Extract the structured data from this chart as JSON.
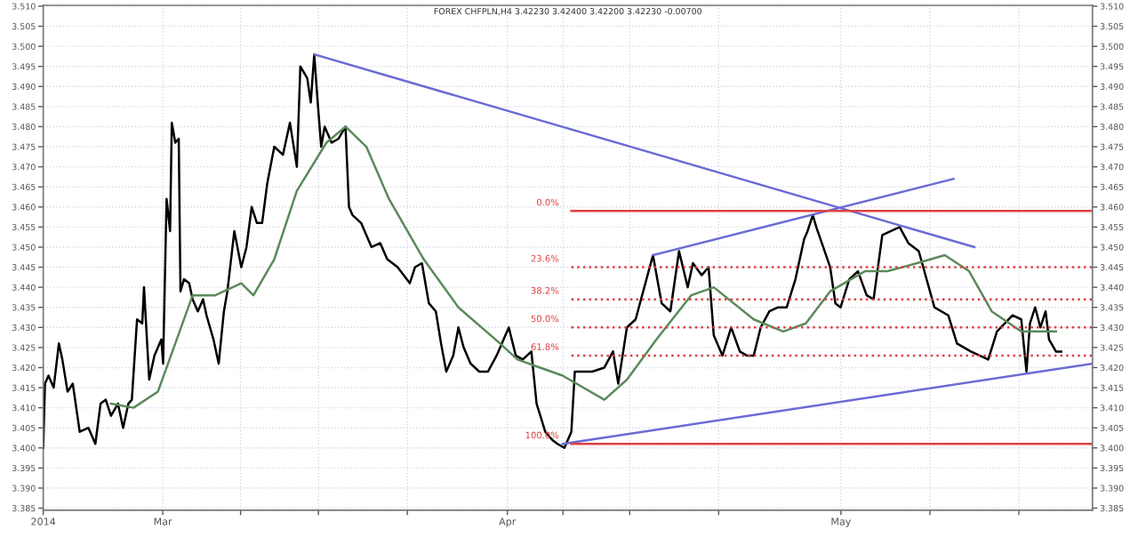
{
  "chart_data": {
    "type": "line",
    "title": "FOREX CHFPLN,H4 3.42230 3.42400 3.42200 3.42230 -0.00700",
    "xlim": [
      "2014-02-18T06:00",
      "2014-05-23T15:00"
    ],
    "ylim": [
      3.3845,
      3.5102
    ],
    "xticks": [
      {
        "value": "2014-02-18T06:00",
        "label": "2014"
      },
      {
        "value": "2014-03-01",
        "label": "Mar"
      },
      {
        "value": "2014-03-08",
        "label": null
      },
      {
        "value": "2014-03-15",
        "label": null
      },
      {
        "value": "2014-03-23",
        "label": null
      },
      {
        "value": "2014-04-01",
        "label": "Apr"
      },
      {
        "value": "2014-04-06",
        "label": null
      },
      {
        "value": "2014-04-12",
        "label": null
      },
      {
        "value": "2014-04-20",
        "label": null
      },
      {
        "value": "2014-05-01",
        "label": "May"
      },
      {
        "value": "2014-05-09",
        "label": null
      },
      {
        "value": "2014-05-17",
        "label": null
      }
    ],
    "yticks": [
      {
        "value": 3.385,
        "label": "3.385"
      },
      {
        "value": 3.39,
        "label": "3.390"
      },
      {
        "value": 3.395,
        "label": "3.395"
      },
      {
        "value": 3.4,
        "label": "3.400"
      },
      {
        "value": 3.405,
        "label": "3.405"
      },
      {
        "value": 3.41,
        "label": "3.410"
      },
      {
        "value": 3.415,
        "label": "3.415"
      },
      {
        "value": 3.42,
        "label": "3.420"
      },
      {
        "value": 3.425,
        "label": "3.425"
      },
      {
        "value": 3.43,
        "label": "3.430"
      },
      {
        "value": 3.435,
        "label": "3.435"
      },
      {
        "value": 3.44,
        "label": "3.440"
      },
      {
        "value": 3.445,
        "label": "3.445"
      },
      {
        "value": 3.45,
        "label": "3.450"
      },
      {
        "value": 3.455,
        "label": "3.455"
      },
      {
        "value": 3.46,
        "label": "3.460"
      },
      {
        "value": 3.465,
        "label": "3.465"
      },
      {
        "value": 3.47,
        "label": "3.470"
      },
      {
        "value": 3.475,
        "label": "3.475"
      },
      {
        "value": 3.48,
        "label": "3.480"
      },
      {
        "value": 3.485,
        "label": "3.485"
      },
      {
        "value": 3.49,
        "label": "3.490"
      },
      {
        "value": 3.495,
        "label": "3.495"
      },
      {
        "value": 3.5,
        "label": "3.500"
      },
      {
        "value": 3.505,
        "label": "3.505"
      },
      {
        "value": 3.51,
        "label": "3.510"
      }
    ],
    "grid": true,
    "line_style": "solid",
    "marker": "none",
    "series": [
      {
        "color": "#000000",
        "x": [
          "2014-02-18T06:00",
          "2014-02-18T09:45",
          "2014-02-18T17:15",
          "2014-02-19T04:30",
          "2014-02-19T15:45",
          "2014-02-19T23:15",
          "2014-02-20T10:30",
          "2014-02-20T21:45",
          "2014-02-21T12:45",
          "2014-02-22T07:30",
          "2014-02-22T22:30",
          "2014-02-23T09:45",
          "2014-02-23T21:00",
          "2014-02-24T08:15",
          "2014-02-24T23:15",
          "2014-02-25T10:30",
          "2014-02-25T21:45",
          "2014-02-26T05:15",
          "2014-02-26T16:30",
          "2014-02-27T03:45",
          "2014-02-27T07:30",
          "2014-02-27T18:45",
          "2014-02-28T06:00",
          "2014-02-28T21:00",
          "2014-03-01T00:45",
          "2014-03-01T08:15",
          "2014-03-01T15:45",
          "2014-03-01T19:30",
          "2014-03-02T03:00",
          "2014-03-02T10:30",
          "2014-03-02T14:15",
          "2014-03-02T21:45",
          "2014-03-03T09:00",
          "2014-03-03T16:30",
          "2014-03-04T03:45",
          "2014-03-04T15:00",
          "2014-03-04T22:30",
          "2014-03-05T13:30",
          "2014-03-06T00:45",
          "2014-03-06T12:00",
          "2014-03-06T19:30",
          "2014-03-07T10:30",
          "2014-03-08T01:30",
          "2014-03-08T12:45",
          "2014-03-09T00:00",
          "2014-03-09T11:15",
          "2014-03-09T22:30",
          "2014-03-10T09:45",
          "2014-03-11T00:45",
          "2014-03-11T19:30",
          "2014-03-12T10:30",
          "2014-03-13T01:30",
          "2014-03-13T09:00",
          "2014-03-14T00:00",
          "2014-03-14T07:30",
          "2014-03-14T15:00",
          "2014-03-14T22:30",
          "2014-03-15T06:00",
          "2014-03-15T13:30",
          "2014-03-16T04:30",
          "2014-03-16T19:30",
          "2014-03-17T10:30",
          "2014-03-17T18:00",
          "2014-03-18T01:30",
          "2014-03-18T20:15",
          "2014-03-19T18:45",
          "2014-03-20T13:30",
          "2014-03-21T04:30",
          "2014-03-22T03:00",
          "2014-03-23T05:15",
          "2014-03-23T16:30",
          "2014-03-24T07:30",
          "2014-03-24T22:30",
          "2014-03-25T13:30",
          "2014-03-26T00:45",
          "2014-03-26T12:00",
          "2014-03-27T03:00",
          "2014-03-27T14:15",
          "2014-03-28T01:30",
          "2014-03-28T16:30",
          "2014-03-29T11:15",
          "2014-03-30T06:00",
          "2014-03-31T00:45",
          "2014-04-01T03:00",
          "2014-04-01T18:00",
          "2014-04-02T09:00",
          "2014-04-03T03:45",
          "2014-04-03T15:00",
          "2014-04-04T09:45",
          "2014-04-05T00:45",
          "2014-04-05T12:00",
          "2014-04-06T03:00",
          "2014-04-06T18:00",
          "2014-04-07T01:30",
          "2014-04-08T15:00",
          "2014-04-09T17:15",
          "2014-04-10T12:00",
          "2014-04-10T23:15",
          "2014-04-11T18:00",
          "2014-04-12T12:45",
          "2014-04-13T07:30",
          "2014-04-14T02:15",
          "2014-04-14T21:00",
          "2014-04-15T15:45",
          "2014-04-16T10:30",
          "2014-04-17T05:15",
          "2014-04-17T16:30",
          "2014-04-18T11:15",
          "2014-04-19T02:15",
          "2014-04-19T13:30",
          "2014-04-20T08:15",
          "2014-04-21T03:00",
          "2014-04-21T21:45",
          "2014-04-22T12:45",
          "2014-04-23T03:45",
          "2014-04-23T18:45",
          "2014-04-24T13:30",
          "2014-04-25T08:15",
          "2014-04-26T03:00",
          "2014-04-26T21:45",
          "2014-04-27T16:30",
          "2014-04-28T00:00",
          "2014-04-28T11:15",
          "2014-04-28T18:45",
          "2014-04-29T09:45",
          "2014-04-30T00:45",
          "2014-04-30T12:00",
          "2014-04-30T23:15",
          "2014-05-01T18:00",
          "2014-05-02T12:45",
          "2014-05-03T07:30",
          "2014-05-03T22:30",
          "2014-05-04T17:15",
          "2014-05-05T12:00",
          "2014-05-06T06:45",
          "2014-05-07T01:30",
          "2014-05-08T00:00",
          "2014-05-09T09:45",
          "2014-05-10T15:45",
          "2014-05-11T10:30",
          "2014-05-12T16:30",
          "2014-05-14T06:00",
          "2014-05-15T00:45",
          "2014-05-16T10:30",
          "2014-05-17T05:15",
          "2014-05-17T16:30",
          "2014-05-18T00:00",
          "2014-05-18T11:15",
          "2014-05-18T22:30",
          "2014-05-19T09:45",
          "2014-05-19T17:15",
          "2014-05-20T08:15",
          "2014-05-20T19:30"
        ],
        "values": [
          3.4,
          3.416,
          3.418,
          3.415,
          3.426,
          3.422,
          3.414,
          3.416,
          3.404,
          3.405,
          3.401,
          3.411,
          3.412,
          3.408,
          3.411,
          3.405,
          3.411,
          3.412,
          3.432,
          3.431,
          3.44,
          3.417,
          3.423,
          3.427,
          3.421,
          3.462,
          3.454,
          3.481,
          3.476,
          3.477,
          3.439,
          3.442,
          3.441,
          3.437,
          3.434,
          3.437,
          3.433,
          3.427,
          3.421,
          3.434,
          3.439,
          3.454,
          3.445,
          3.45,
          3.46,
          3.456,
          3.456,
          3.466,
          3.475,
          3.473,
          3.481,
          3.47,
          3.495,
          3.492,
          3.486,
          3.498,
          3.486,
          3.475,
          3.48,
          3.476,
          3.477,
          3.48,
          3.46,
          3.458,
          3.456,
          3.45,
          3.451,
          3.447,
          3.445,
          3.441,
          3.445,
          3.446,
          3.436,
          3.434,
          3.426,
          3.419,
          3.423,
          3.43,
          3.425,
          3.421,
          3.419,
          3.419,
          3.423,
          3.43,
          3.423,
          3.422,
          3.424,
          3.411,
          3.404,
          3.402,
          3.401,
          3.4,
          3.404,
          3.419,
          3.419,
          3.42,
          3.424,
          3.416,
          3.43,
          3.432,
          3.44,
          3.448,
          3.436,
          3.434,
          3.449,
          3.44,
          3.446,
          3.443,
          3.445,
          3.428,
          3.423,
          3.43,
          3.424,
          3.423,
          3.423,
          3.43,
          3.434,
          3.435,
          3.435,
          3.442,
          3.452,
          3.454,
          3.458,
          3.455,
          3.45,
          3.445,
          3.436,
          3.435,
          3.442,
          3.444,
          3.438,
          3.437,
          3.453,
          3.454,
          3.455,
          3.451,
          3.449,
          3.435,
          3.433,
          3.426,
          3.424,
          3.422,
          3.429,
          3.433,
          3.432,
          3.419,
          3.431,
          3.435,
          3.43,
          3.434,
          3.427,
          3.424,
          3.424
        ]
      },
      {
        "color": "#5a8a5a",
        "x": [
          "2014-02-24T08:15",
          "2014-02-26T09:00",
          "2014-02-28T13:30",
          "2014-03-03T16:30",
          "2014-03-05T17:15",
          "2014-03-07T06:45",
          "2014-03-08T01:30",
          "2014-03-09T03:45",
          "2014-03-11T00:45",
          "2014-03-13T01:30",
          "2014-03-15T17:15",
          "2014-03-17T10:30",
          "2014-03-19T07:30",
          "2014-03-21T08:15",
          "2014-03-24T11:15",
          "2014-03-27T14:15",
          "2014-03-31T08:15",
          "2014-04-01T21:45",
          "2014-04-03T22:30",
          "2014-04-05T23:15",
          "2014-04-09T17:15",
          "2014-04-11T18:00",
          "2014-04-14T09:45",
          "2014-04-17T12:45",
          "2014-04-19T13:30",
          "2014-04-23T03:45",
          "2014-04-25T19:30",
          "2014-04-27T20:15",
          "2014-04-30T00:45",
          "2014-05-03T03:45",
          "2014-05-05T04:30",
          "2014-05-07T20:15",
          "2014-05-10T08:15",
          "2014-05-12T12:45",
          "2014-05-14T13:30",
          "2014-05-17T05:15",
          "2014-05-20T08:15"
        ],
        "values": [
          3.411,
          3.41,
          3.414,
          3.438,
          3.438,
          3.44,
          3.441,
          3.438,
          3.447,
          3.464,
          3.476,
          3.48,
          3.475,
          3.462,
          3.447,
          3.435,
          3.426,
          3.422,
          3.42,
          3.418,
          3.412,
          3.417,
          3.427,
          3.438,
          3.44,
          3.432,
          3.429,
          3.431,
          3.439,
          3.444,
          3.444,
          3.446,
          3.448,
          3.444,
          3.434,
          3.429,
          3.429
        ]
      },
      {
        "color": "#6b6bd6",
        "x": [
          "2014-03-14T15:00",
          "2014-05-13T00:00"
        ],
        "values": [
          3.498,
          3.45
        ]
      },
      {
        "color": "#6b6bd6",
        "x": [
          "2014-04-14T02:15",
          "2014-05-11T03:00"
        ],
        "values": [
          3.448,
          3.467
        ]
      },
      {
        "color": "#6b6bd6",
        "x": [
          "2014-04-05T23:15",
          "2014-05-23T15:00"
        ],
        "values": [
          3.401,
          3.421
        ]
      },
      {
        "name": "0.0%",
        "color": "#e04040",
        "x": [
          "2014-04-06T18:00",
          "2014-05-23T15:00"
        ],
        "values": [
          3.459,
          3.459
        ],
        "line_style": "solid"
      },
      {
        "name": "23.6%",
        "color": "#e04040",
        "x": [
          "2014-04-06T18:00",
          "2014-05-23T15:00"
        ],
        "values": [
          3.445,
          3.445
        ],
        "line_style": "dotted"
      },
      {
        "name": "38.2%",
        "color": "#e04040",
        "x": [
          "2014-04-06T18:00",
          "2014-05-23T15:00"
        ],
        "values": [
          3.437,
          3.437
        ],
        "line_style": "dotted"
      },
      {
        "name": "50.0%",
        "color": "#e04040",
        "x": [
          "2014-04-06T18:00",
          "2014-05-23T15:00"
        ],
        "values": [
          3.43,
          3.43
        ],
        "line_style": "dotted"
      },
      {
        "name": "61.8%",
        "color": "#e04040",
        "x": [
          "2014-04-06T18:00",
          "2014-05-23T15:00"
        ],
        "values": [
          3.423,
          3.423
        ],
        "line_style": "dotted"
      },
      {
        "name": "100.0%",
        "color": "#e04040",
        "x": [
          "2014-04-06T18:00",
          "2014-05-23T15:00"
        ],
        "values": [
          3.401,
          3.401
        ],
        "line_style": "solid"
      }
    ]
  }
}
